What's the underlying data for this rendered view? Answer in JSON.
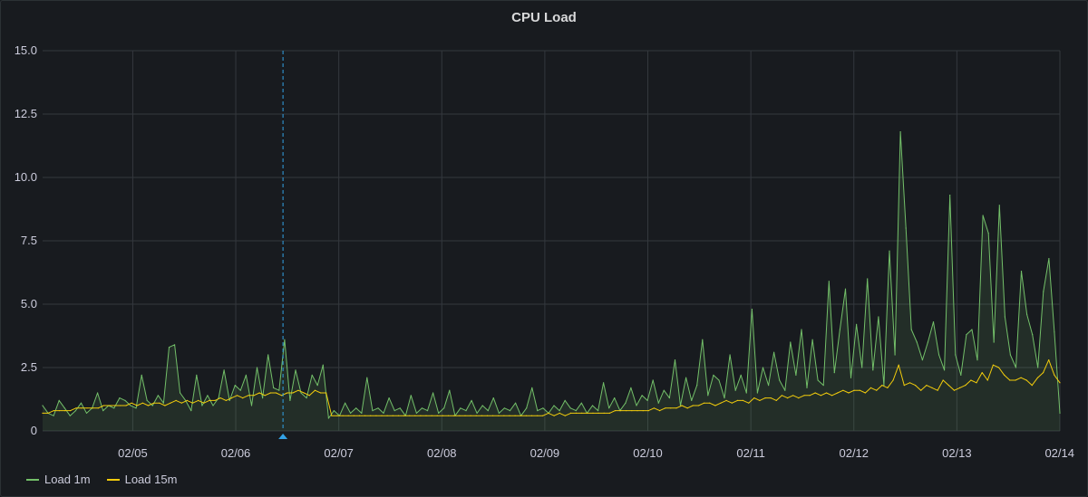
{
  "panel": {
    "title": "CPU Load"
  },
  "chart_data": {
    "type": "line",
    "title": "CPU Load",
    "xlabel": "",
    "ylabel": "",
    "ylim": [
      0,
      15
    ],
    "y_ticks": [
      "0",
      "2.5",
      "5.0",
      "7.5",
      "10.0",
      "12.5",
      "15.0"
    ],
    "x_ticks": [
      "02/05",
      "02/06",
      "02/07",
      "02/08",
      "02/09",
      "02/10",
      "02/11",
      "02/12",
      "02/13",
      "02/14"
    ],
    "x_range": [
      "02/04 03:00",
      "02/14 00:00"
    ],
    "grid": true,
    "legend_position": "bottom-left",
    "annotation": {
      "x": "02/06 11:00"
    },
    "series": [
      {
        "name": "Load 1m",
        "color": "#73bf69",
        "fill": true,
        "values": [
          1.0,
          0.7,
          0.6,
          1.2,
          0.9,
          0.6,
          0.8,
          1.1,
          0.7,
          0.9,
          1.5,
          0.8,
          1.0,
          0.9,
          1.3,
          1.2,
          1.0,
          0.9,
          2.2,
          1.2,
          1.0,
          1.4,
          1.1,
          3.3,
          3.4,
          1.5,
          1.2,
          0.8,
          2.2,
          1.0,
          1.4,
          1.0,
          1.3,
          2.4,
          1.2,
          1.8,
          1.6,
          2.2,
          1.0,
          2.5,
          1.3,
          3.0,
          1.7,
          1.6,
          3.6,
          1.2,
          2.4,
          1.5,
          1.3,
          2.2,
          1.8,
          2.6,
          0.5,
          0.8,
          0.6,
          1.1,
          0.7,
          0.9,
          0.7,
          2.1,
          0.8,
          0.9,
          0.7,
          1.3,
          0.8,
          0.9,
          0.6,
          1.4,
          0.7,
          0.9,
          0.8,
          1.5,
          0.7,
          0.9,
          1.6,
          0.6,
          0.9,
          0.8,
          1.2,
          0.7,
          1.0,
          0.8,
          1.3,
          0.7,
          0.9,
          0.8,
          1.1,
          0.6,
          0.9,
          1.7,
          0.8,
          0.9,
          0.7,
          1.0,
          0.8,
          1.2,
          0.9,
          0.8,
          1.1,
          0.7,
          1.0,
          0.8,
          1.9,
          0.9,
          1.3,
          0.8,
          1.1,
          1.7,
          1.0,
          1.4,
          1.2,
          2.0,
          1.1,
          1.6,
          1.3,
          2.8,
          1.0,
          2.1,
          1.2,
          1.8,
          3.6,
          1.4,
          2.2,
          2.0,
          1.3,
          3.0,
          1.6,
          2.2,
          1.5,
          4.8,
          1.5,
          2.5,
          1.8,
          3.1,
          2.0,
          1.6,
          3.5,
          2.2,
          4.0,
          1.7,
          3.6,
          2.0,
          1.8,
          5.9,
          2.3,
          4.0,
          5.6,
          2.1,
          4.2,
          2.5,
          6.0,
          2.4,
          4.5,
          1.8,
          7.1,
          3.0,
          11.8,
          8.0,
          4.0,
          3.5,
          2.8,
          3.5,
          4.3,
          3.0,
          2.4,
          9.3,
          3.0,
          2.2,
          3.8,
          4.0,
          2.8,
          8.5,
          7.8,
          3.5,
          8.9,
          4.5,
          3.0,
          2.5,
          6.3,
          4.6,
          3.8,
          2.5,
          5.5,
          6.8,
          3.9,
          0.7
        ]
      },
      {
        "name": "Load 15m",
        "color": "#f2cc0c",
        "fill": false,
        "values": [
          0.7,
          0.7,
          0.8,
          0.8,
          0.8,
          0.8,
          0.9,
          0.9,
          0.9,
          0.9,
          0.9,
          1.0,
          1.0,
          1.0,
          1.0,
          1.0,
          1.1,
          1.0,
          1.1,
          1.0,
          1.1,
          1.1,
          1.0,
          1.1,
          1.2,
          1.1,
          1.2,
          1.1,
          1.2,
          1.1,
          1.2,
          1.2,
          1.3,
          1.2,
          1.3,
          1.4,
          1.3,
          1.4,
          1.4,
          1.5,
          1.4,
          1.5,
          1.5,
          1.4,
          1.5,
          1.5,
          1.6,
          1.5,
          1.4,
          1.6,
          1.5,
          1.5,
          0.6,
          0.6,
          0.6,
          0.6,
          0.6,
          0.6,
          0.6,
          0.6,
          0.6,
          0.6,
          0.6,
          0.6,
          0.6,
          0.6,
          0.6,
          0.6,
          0.6,
          0.6,
          0.6,
          0.6,
          0.6,
          0.6,
          0.6,
          0.6,
          0.6,
          0.6,
          0.6,
          0.6,
          0.6,
          0.6,
          0.6,
          0.6,
          0.6,
          0.6,
          0.6,
          0.6,
          0.6,
          0.6,
          0.6,
          0.7,
          0.6,
          0.7,
          0.6,
          0.7,
          0.7,
          0.7,
          0.7,
          0.7,
          0.7,
          0.7,
          0.7,
          0.8,
          0.8,
          0.8,
          0.8,
          0.8,
          0.8,
          0.8,
          0.9,
          0.8,
          0.9,
          0.9,
          0.9,
          1.0,
          0.9,
          1.0,
          1.0,
          1.1,
          1.1,
          1.0,
          1.1,
          1.2,
          1.1,
          1.2,
          1.2,
          1.1,
          1.3,
          1.2,
          1.3,
          1.3,
          1.2,
          1.4,
          1.3,
          1.4,
          1.3,
          1.4,
          1.4,
          1.5,
          1.4,
          1.5,
          1.4,
          1.5,
          1.6,
          1.5,
          1.6,
          1.6,
          1.5,
          1.7,
          1.6,
          1.8,
          1.7,
          2.0,
          2.6,
          1.8,
          1.9,
          1.8,
          1.6,
          1.8,
          1.7,
          1.6,
          2.0,
          1.8,
          1.6,
          1.7,
          1.8,
          2.0,
          1.9,
          2.3,
          2.0,
          2.6,
          2.5,
          2.2,
          2.0,
          2.0,
          2.1,
          2.0,
          1.8,
          2.1,
          2.3,
          2.8,
          2.2,
          1.9
        ]
      }
    ]
  }
}
